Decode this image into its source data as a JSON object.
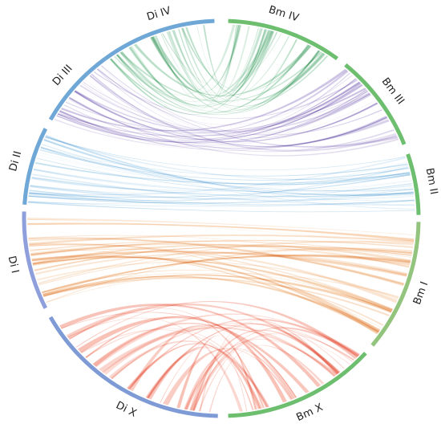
{
  "diagram": {
    "type": "circos-synteny",
    "chromosomes": [
      {
        "id": "DiIV",
        "label": "Di IV",
        "color": "#6fa8d6"
      },
      {
        "id": "BmIV",
        "label": "Bm IV",
        "color": "#6dbf6f"
      },
      {
        "id": "BmIII",
        "label": "Bm III",
        "color": "#6dbf6f"
      },
      {
        "id": "BmII",
        "label": "Bm II",
        "color": "#6dbf6f"
      },
      {
        "id": "BmI",
        "label": "Bm I",
        "color": "#93c47d"
      },
      {
        "id": "BmX",
        "label": "Bm X",
        "color": "#6dbf6f"
      },
      {
        "id": "DiX",
        "label": "Di X",
        "color": "#7f9bd6"
      },
      {
        "id": "DiI",
        "label": "Di I",
        "color": "#8f9fdc"
      },
      {
        "id": "DiII",
        "label": "Di II",
        "color": "#6fa8d6"
      },
      {
        "id": "DiIII",
        "label": "Di III",
        "color": "#6fa8d6"
      }
    ],
    "links": [
      {
        "from": "DiIV",
        "to": "BmIV",
        "color": "#7fc49a"
      },
      {
        "from": "DiIII",
        "to": "BmIII",
        "color": "#9e8ccb"
      },
      {
        "from": "DiII",
        "to": "BmII",
        "color": "#8ec3e6"
      },
      {
        "from": "DiI",
        "to": "BmI",
        "color": "#f0b27a"
      },
      {
        "from": "DiX",
        "to": "BmX",
        "color": "#f2907c"
      }
    ]
  }
}
